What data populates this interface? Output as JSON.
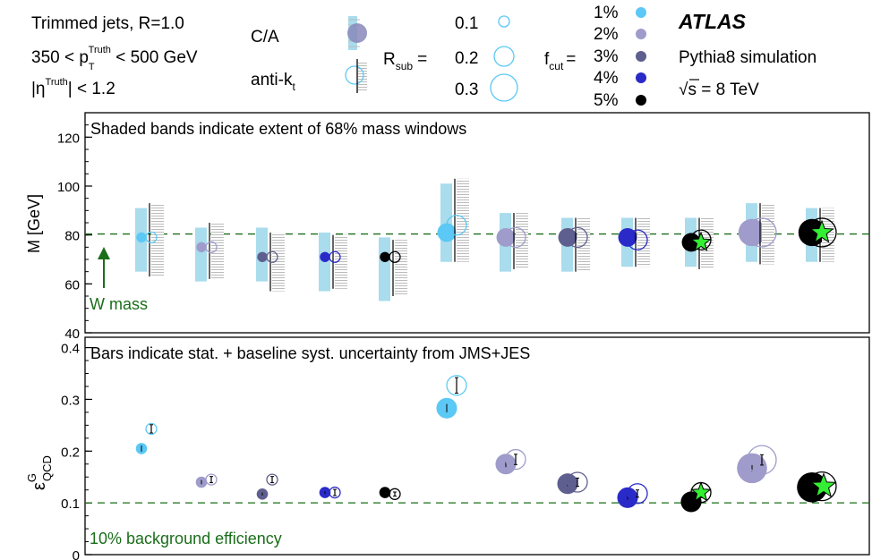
{
  "legend": {
    "jet_type": "Trimmed jets, R=1.0",
    "pt_range": {
      "pre": "350 < p",
      "sub": "T",
      "sup": "Truth",
      "post": " < 500 GeV"
    },
    "eta_cut": {
      "pre": "|η",
      "sup": "Truth",
      "post": "| < 1.2"
    },
    "algorithms": [
      {
        "label": "C/A",
        "sub": ""
      },
      {
        "label": "anti-k",
        "sub": "t"
      }
    ],
    "rsub_label": "R",
    "rsub_sub": "sub",
    "rsub_eq": "=",
    "rsub_values": [
      "0.1",
      "0.2",
      "0.3"
    ],
    "fcut_label": "f",
    "fcut_sub": "cut",
    "fcut_eq": "=",
    "fcut_values": [
      "1%",
      "2%",
      "3%",
      "4%",
      "5%"
    ],
    "experiment": "ATLAS",
    "simulation": "Pythia8 simulation",
    "energy": {
      "sqrt": "√",
      "text": "s = 8 TeV"
    }
  },
  "colors": {
    "fcut": [
      "#5bc8f5",
      "#9f9ccb",
      "#5f5f8f",
      "#2a2ac8",
      "#000000"
    ],
    "band": "#a9dcec",
    "hatch": "#bbbbbb",
    "star": "#33ee33",
    "reference_line": "#1a6e1a",
    "reference_text": "#1a6e1a"
  },
  "chart_data": [
    {
      "type": "scatter",
      "panel": "mass",
      "annotation": "Shaded bands indicate extent of 68% mass windows",
      "ylabel": "M [GeV]",
      "ylim": [
        40,
        130
      ],
      "yticks": [
        "40",
        "60",
        "80",
        "100",
        "120"
      ],
      "reference": {
        "value": 80.4,
        "label": "W mass"
      },
      "points": [
        {
          "algo": "C/A",
          "rsub": 0.1,
          "fcut": 1,
          "y": 79,
          "band": [
            65,
            91
          ]
        },
        {
          "algo": "anti-kt",
          "rsub": 0.1,
          "fcut": 1,
          "y": 79,
          "band": [
            63,
            93
          ]
        },
        {
          "algo": "C/A",
          "rsub": 0.1,
          "fcut": 2,
          "y": 75,
          "band": [
            61,
            83
          ]
        },
        {
          "algo": "anti-kt",
          "rsub": 0.1,
          "fcut": 2,
          "y": 75,
          "band": [
            62,
            85
          ]
        },
        {
          "algo": "C/A",
          "rsub": 0.1,
          "fcut": 3,
          "y": 71,
          "band": [
            61,
            83
          ]
        },
        {
          "algo": "anti-kt",
          "rsub": 0.1,
          "fcut": 3,
          "y": 71,
          "band": [
            57,
            81
          ]
        },
        {
          "algo": "C/A",
          "rsub": 0.1,
          "fcut": 4,
          "y": 71,
          "band": [
            57,
            81
          ]
        },
        {
          "algo": "anti-kt",
          "rsub": 0.1,
          "fcut": 4,
          "y": 71,
          "band": [
            58,
            80
          ]
        },
        {
          "algo": "C/A",
          "rsub": 0.1,
          "fcut": 5,
          "y": 71,
          "band": [
            53,
            79
          ]
        },
        {
          "algo": "anti-kt",
          "rsub": 0.1,
          "fcut": 5,
          "y": 71,
          "band": [
            55,
            78
          ]
        },
        {
          "algo": "C/A",
          "rsub": 0.2,
          "fcut": 1,
          "y": 81,
          "band": [
            69,
            101
          ]
        },
        {
          "algo": "anti-kt",
          "rsub": 0.2,
          "fcut": 1,
          "y": 84,
          "band": [
            69,
            103
          ]
        },
        {
          "algo": "C/A",
          "rsub": 0.2,
          "fcut": 2,
          "y": 79,
          "band": [
            65,
            89
          ]
        },
        {
          "algo": "anti-kt",
          "rsub": 0.2,
          "fcut": 2,
          "y": 79,
          "band": [
            66,
            89
          ]
        },
        {
          "algo": "C/A",
          "rsub": 0.2,
          "fcut": 3,
          "y": 79,
          "band": [
            65,
            87
          ]
        },
        {
          "algo": "anti-kt",
          "rsub": 0.2,
          "fcut": 3,
          "y": 79,
          "band": [
            65,
            87
          ]
        },
        {
          "algo": "C/A",
          "rsub": 0.2,
          "fcut": 4,
          "y": 79,
          "band": [
            67,
            87
          ]
        },
        {
          "algo": "anti-kt",
          "rsub": 0.2,
          "fcut": 4,
          "y": 78,
          "band": [
            67,
            87
          ]
        },
        {
          "algo": "C/A",
          "rsub": 0.2,
          "fcut": 5,
          "y": 77,
          "band": [
            67,
            87
          ]
        },
        {
          "algo": "anti-kt",
          "rsub": 0.2,
          "fcut": 5,
          "y": 78,
          "band": [
            66,
            87
          ]
        },
        {
          "algo": "C/A",
          "rsub": 0.3,
          "fcut": 2,
          "y": 81,
          "band": [
            69,
            93
          ]
        },
        {
          "algo": "anti-kt",
          "rsub": 0.3,
          "fcut": 2,
          "y": 81,
          "band": [
            68,
            93
          ]
        },
        {
          "algo": "C/A",
          "rsub": 0.3,
          "fcut": 5,
          "y": 81,
          "band": [
            69,
            91
          ]
        },
        {
          "algo": "anti-kt",
          "rsub": 0.3,
          "fcut": 5,
          "y": 81,
          "band": [
            69,
            91
          ]
        }
      ]
    },
    {
      "type": "scatter",
      "panel": "efficiency",
      "annotation": "Bars indicate stat. + baseline syst. uncertainty from JMS+JES",
      "ylabel": {
        "base": "ε",
        "sup": "G",
        "sub": "QCD"
      },
      "ylim": [
        0,
        0.42
      ],
      "yticks": [
        "0",
        "0.1",
        "0.2",
        "0.3",
        "0.4"
      ],
      "reference": {
        "value": 0.1,
        "label": "10% background efficiency"
      },
      "points": [
        {
          "algo": "C/A",
          "rsub": 0.1,
          "fcut": 1,
          "y": 0.205,
          "err": 0.006
        },
        {
          "algo": "anti-kt",
          "rsub": 0.1,
          "fcut": 1,
          "y": 0.243,
          "err": 0.008
        },
        {
          "algo": "C/A",
          "rsub": 0.1,
          "fcut": 2,
          "y": 0.14,
          "err": 0.004
        },
        {
          "algo": "anti-kt",
          "rsub": 0.1,
          "fcut": 2,
          "y": 0.145,
          "err": 0.006
        },
        {
          "algo": "C/A",
          "rsub": 0.1,
          "fcut": 3,
          "y": 0.117,
          "err": 0.003
        },
        {
          "algo": "anti-kt",
          "rsub": 0.1,
          "fcut": 3,
          "y": 0.145,
          "err": 0.006
        },
        {
          "algo": "C/A",
          "rsub": 0.1,
          "fcut": 4,
          "y": 0.12,
          "err": 0.003
        },
        {
          "algo": "anti-kt",
          "rsub": 0.1,
          "fcut": 4,
          "y": 0.12,
          "err": 0.006
        },
        {
          "algo": "C/A",
          "rsub": 0.1,
          "fcut": 5,
          "y": 0.12,
          "err": 0.003
        },
        {
          "algo": "anti-kt",
          "rsub": 0.1,
          "fcut": 5,
          "y": 0.117,
          "err": 0.004
        },
        {
          "algo": "C/A",
          "rsub": 0.2,
          "fcut": 1,
          "y": 0.283,
          "err": 0.008
        },
        {
          "algo": "anti-kt",
          "rsub": 0.2,
          "fcut": 1,
          "y": 0.327,
          "err": 0.015
        },
        {
          "algo": "C/A",
          "rsub": 0.2,
          "fcut": 2,
          "y": 0.175,
          "err": 0.006
        },
        {
          "algo": "anti-kt",
          "rsub": 0.2,
          "fcut": 2,
          "y": 0.184,
          "err": 0.01
        },
        {
          "algo": "C/A",
          "rsub": 0.2,
          "fcut": 3,
          "y": 0.137,
          "err": 0.005
        },
        {
          "algo": "anti-kt",
          "rsub": 0.2,
          "fcut": 3,
          "y": 0.14,
          "err": 0.008
        },
        {
          "algo": "C/A",
          "rsub": 0.2,
          "fcut": 4,
          "y": 0.11,
          "err": 0.004
        },
        {
          "algo": "anti-kt",
          "rsub": 0.2,
          "fcut": 4,
          "y": 0.118,
          "err": 0.007
        },
        {
          "algo": "C/A",
          "rsub": 0.2,
          "fcut": 5,
          "y": 0.102,
          "err": 0.004
        },
        {
          "algo": "anti-kt",
          "rsub": 0.2,
          "fcut": 5,
          "y": 0.12,
          "err": 0.01
        },
        {
          "algo": "C/A",
          "rsub": 0.3,
          "fcut": 2,
          "y": 0.167,
          "err": 0.006
        },
        {
          "algo": "anti-kt",
          "rsub": 0.3,
          "fcut": 2,
          "y": 0.183,
          "err": 0.01
        },
        {
          "algo": "C/A",
          "rsub": 0.3,
          "fcut": 5,
          "y": 0.13,
          "err": 0.004
        },
        {
          "algo": "anti-kt",
          "rsub": 0.3,
          "fcut": 5,
          "y": 0.132,
          "err": 0.008
        }
      ]
    }
  ]
}
